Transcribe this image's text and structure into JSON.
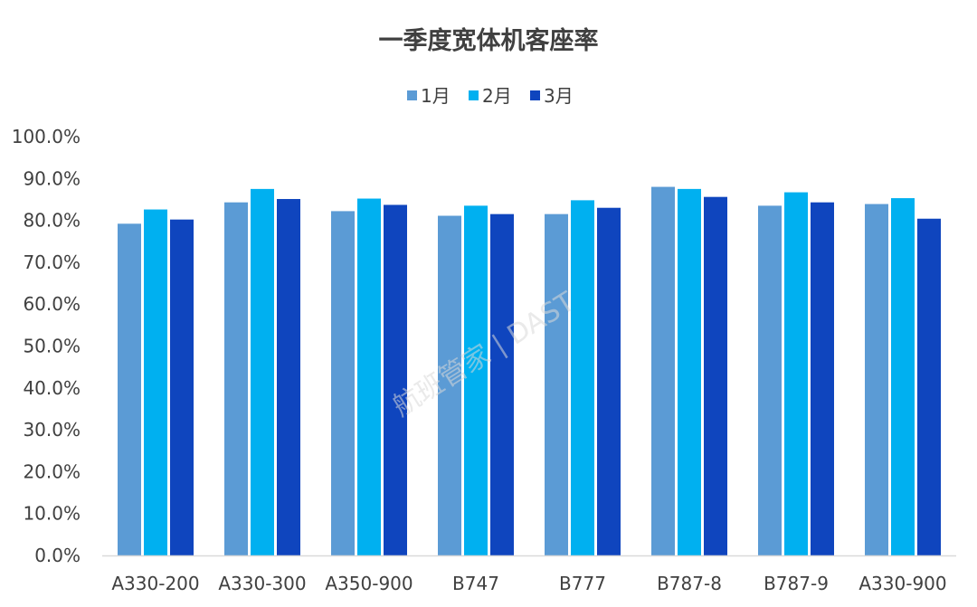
{
  "chart_data": {
    "type": "bar",
    "title": "一季度宽体机客座率",
    "categories": [
      "A330-200",
      "A330-300",
      "A350-900",
      "B747",
      "B777",
      "B787-8",
      "B787-9",
      "A330-900"
    ],
    "series": [
      {
        "name": "1月",
        "color": "#5b9bd5",
        "values": [
          79.2,
          84.3,
          82.2,
          81.1,
          81.5,
          88.0,
          83.5,
          83.9
        ]
      },
      {
        "name": "2月",
        "color": "#00b0f0",
        "values": [
          82.6,
          87.5,
          85.2,
          83.5,
          84.8,
          87.5,
          86.7,
          85.3
        ]
      },
      {
        "name": "3月",
        "color": "#0f45be",
        "values": [
          80.2,
          85.1,
          83.7,
          81.5,
          83.0,
          85.6,
          84.3,
          80.4
        ]
      }
    ],
    "ylim": [
      0,
      100
    ],
    "yticks": [
      "0.0%",
      "10.0%",
      "20.0%",
      "30.0%",
      "40.0%",
      "50.0%",
      "60.0%",
      "70.0%",
      "80.0%",
      "90.0%",
      "100.0%"
    ],
    "grid": false,
    "legend_position": "top-center",
    "watermark": "航班管家 | DAST"
  }
}
